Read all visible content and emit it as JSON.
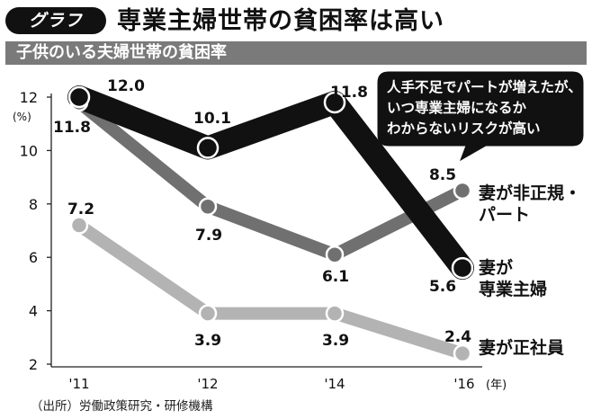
{
  "header": {
    "tag": "グラフ",
    "title": "専業主婦世帯の貧困率は高い"
  },
  "subtitle": "子供のいる夫婦世帯の貧困率",
  "source": "（出所）労働政策研究・研修機構",
  "chart_data": {
    "type": "line",
    "categories": [
      "'11",
      "'12",
      "'14",
      "'16"
    ],
    "x_unit": "(年)",
    "y_unit": "(%)",
    "ylim": [
      2,
      12
    ],
    "yticks": [
      2,
      4,
      6,
      8,
      10,
      12
    ],
    "grid": false,
    "series": [
      {
        "name": "妻が専業主婦",
        "name_lines": [
          "妻が",
          "専業主婦"
        ],
        "values": [
          12.0,
          10.1,
          11.8,
          5.6
        ],
        "value_labels": [
          "12.0",
          "10.1",
          "11.8",
          "5.6"
        ],
        "color": "#111111",
        "marker_fill": "#111111",
        "marker_stroke": "#ffffff"
      },
      {
        "name": "妻が非正規・パート",
        "name_lines": [
          "妻が非正規・",
          "パート"
        ],
        "values": [
          11.8,
          7.9,
          6.1,
          8.5
        ],
        "value_labels": [
          "11.8",
          "7.9",
          "6.1",
          "8.5"
        ],
        "color": "#707070",
        "marker_fill": "#707070",
        "marker_stroke": "#ffffff"
      },
      {
        "name": "妻が正社員",
        "name_lines": [
          "妻が正社員"
        ],
        "values": [
          7.2,
          3.9,
          3.9,
          2.4
        ],
        "value_labels": [
          "7.2",
          "3.9",
          "3.9",
          "2.4"
        ],
        "color": "#b3b3b3",
        "marker_fill": "#b3b3b3",
        "marker_stroke": "#ffffff"
      }
    ],
    "annotation": {
      "lines": [
        "人手不足でパートが増えたが、",
        "いつ専業主婦になるか",
        "わからないリスクが高い"
      ]
    }
  }
}
